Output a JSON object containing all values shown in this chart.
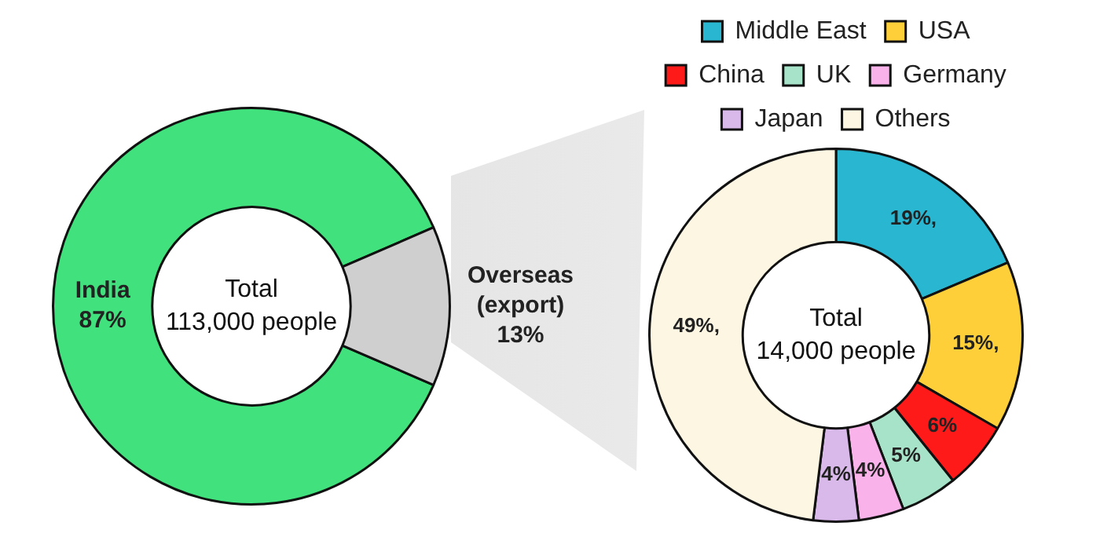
{
  "chart_data": [
    {
      "type": "donut",
      "categories": [
        "India",
        "Overseas\n(export)"
      ],
      "values": [
        87,
        13
      ],
      "colors": [
        "#41e27d",
        "#cfcfcf"
      ],
      "value_labels": [
        "87%",
        "13%"
      ],
      "annotations": [
        "Total\n113,000 people"
      ],
      "legend": false
    },
    {
      "type": "donut",
      "categories": [
        "Middle East",
        "USA",
        "China",
        "UK",
        "Germany",
        "Japan",
        "Others"
      ],
      "values": [
        19,
        15,
        6,
        5,
        4,
        4,
        49
      ],
      "colors": [
        "#29b6d0",
        "#ffcf3a",
        "#ff1a1a",
        "#a6e3c8",
        "#f9b3ea",
        "#d9b8ea",
        "#fdf6e3"
      ],
      "value_labels": [
        "19%,",
        "15%,",
        "6%",
        "5%",
        "4%",
        "4%",
        "49%,"
      ],
      "annotations": [
        "Total\n14,000 people"
      ],
      "legend": "top"
    }
  ]
}
